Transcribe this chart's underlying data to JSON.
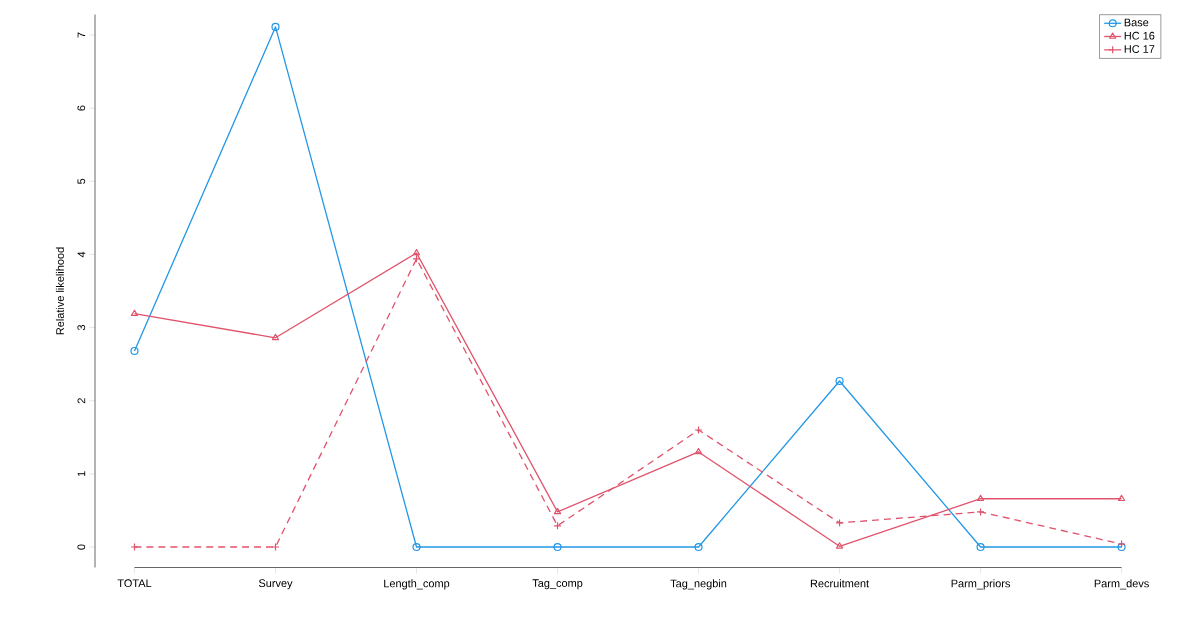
{
  "chart_data": {
    "type": "line",
    "ylabel": "Relative likelihood",
    "categories": [
      "TOTAL",
      "Survey",
      "Length_comp",
      "Tag_comp",
      "Tag_negbin",
      "Recruitment",
      "Parm_priors",
      "Parm_devs"
    ],
    "series": [
      {
        "name": "Base",
        "color": "#2297e6",
        "marker": "circle",
        "line_style": "solid",
        "values": [
          2.68,
          7.11,
          0,
          0,
          0,
          2.27,
          0,
          0
        ]
      },
      {
        "name": "HC 16",
        "color": "#df536b",
        "marker": "triangle",
        "line_style": "solid",
        "values": [
          3.19,
          2.86,
          4.02,
          0.48,
          1.3,
          0.01,
          0.66,
          0.66
        ]
      },
      {
        "name": "HC 17",
        "color": "#df536b",
        "marker": "cross",
        "line_style": "dashed",
        "values": [
          0,
          0,
          3.94,
          0.29,
          1.6,
          0.33,
          0.48,
          0.04
        ]
      }
    ],
    "ylim": [
      -0.28,
      7.28
    ],
    "yticks": [
      0,
      1,
      2,
      3,
      4,
      5,
      6,
      7
    ],
    "grid": false,
    "legend": "top right"
  }
}
